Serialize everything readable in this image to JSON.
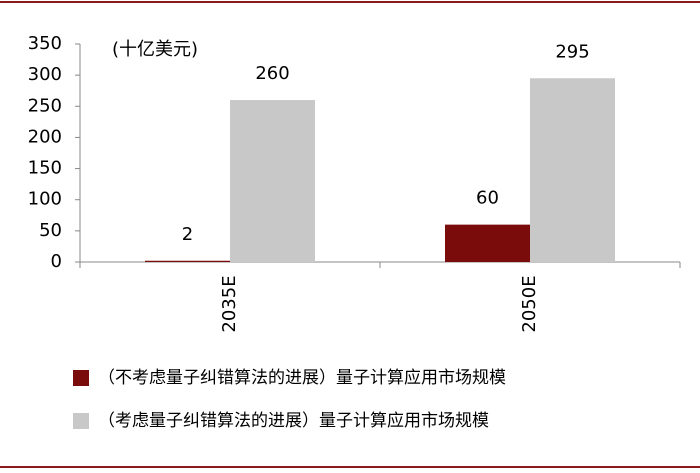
{
  "chart_data": {
    "type": "bar",
    "unit_label": "(十亿美元)",
    "categories": [
      "2035E",
      "2050E"
    ],
    "series": [
      {
        "name": "（不考虑量子纠错算法的进展）量子计算应用市场规模",
        "color": "#7b0c0c",
        "values": [
          2,
          60
        ]
      },
      {
        "name": "（考虑量子纠错算法的进展）量子计算应用市场规模",
        "color": "#c8c8c8",
        "values": [
          260,
          295
        ]
      }
    ],
    "ylim": [
      0,
      350
    ],
    "yticks": [
      0,
      50,
      100,
      150,
      200,
      250,
      300,
      350
    ],
    "grid": false,
    "legend": "bottom"
  }
}
